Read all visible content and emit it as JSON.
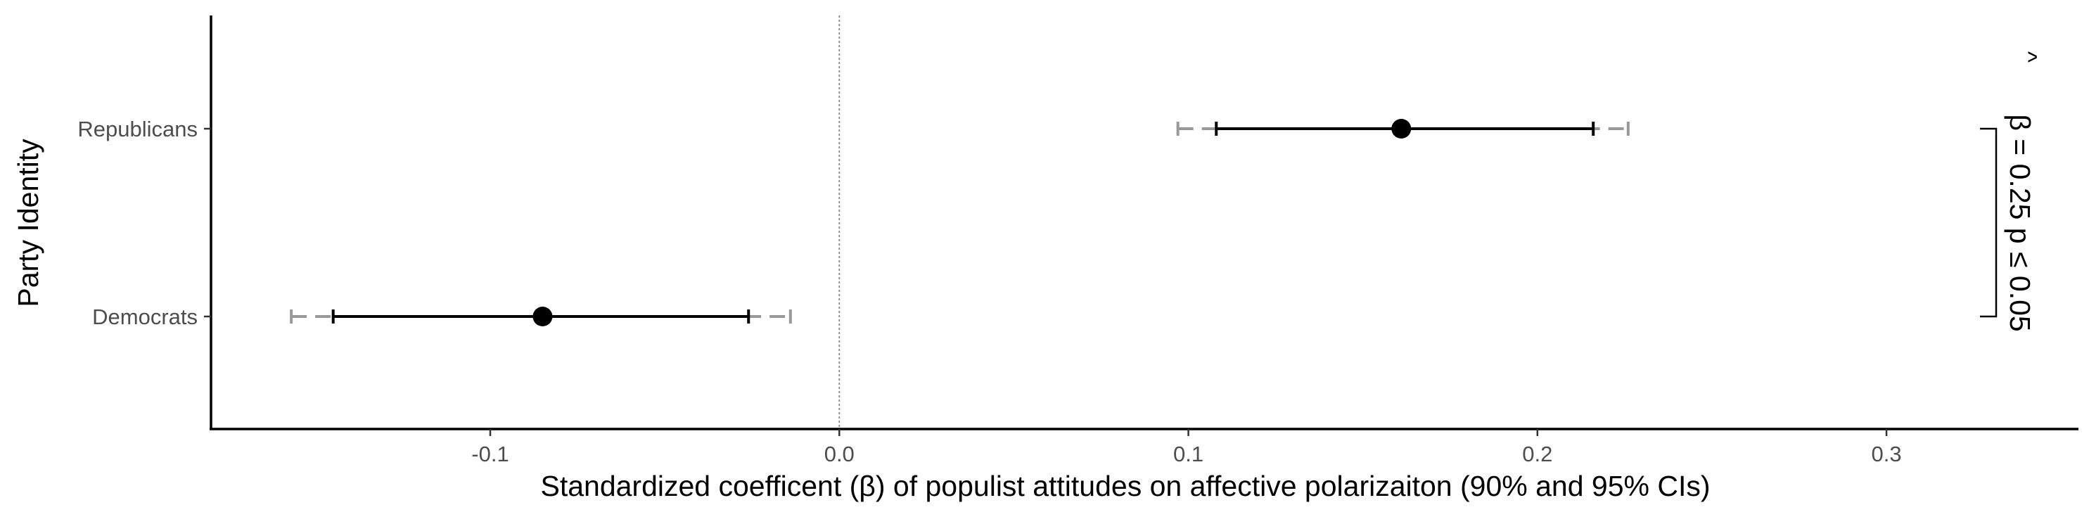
{
  "chart_data": {
    "type": "coefficient-plot",
    "xlabel": "Standardized coefficent (β) of populist attitudes on affective polarizaiton (90% and 95% CIs)",
    "ylabel": "Party Identity",
    "xlim": [
      -0.18,
      0.355
    ],
    "x_ticks": [
      -0.1,
      0.0,
      0.1,
      0.2,
      0.3
    ],
    "x_tick_labels": [
      "-0.1",
      "0.0",
      "0.1",
      "0.2",
      "0.3"
    ],
    "categories": [
      "Republicans",
      "Democrats"
    ],
    "reference_line": 0,
    "series": [
      {
        "category": "Republicans",
        "estimate": 0.161,
        "ci90": [
          0.108,
          0.216
        ],
        "ci95": [
          0.097,
          0.226
        ]
      },
      {
        "category": "Democrats",
        "estimate": -0.085,
        "ci90": [
          -0.145,
          -0.026
        ],
        "ci95": [
          -0.157,
          -0.014
        ]
      }
    ],
    "annotation": {
      "hat_symbol": "^",
      "text": "β = 0.25 p ≤ 0.05"
    },
    "grid": false,
    "colors": {
      "ci90": "#000000",
      "ci95": "#999999",
      "point": "#000000",
      "reference_line": "#888888",
      "axis": "#000000"
    }
  }
}
